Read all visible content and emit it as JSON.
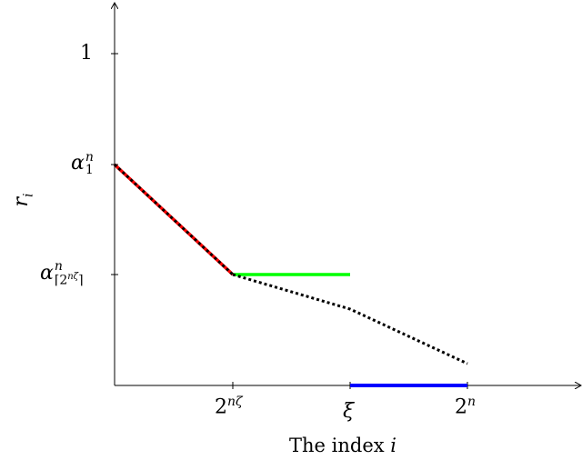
{
  "y_axis": {
    "label_base": "r",
    "label_sub": "i",
    "ticks": [
      {
        "text": "1"
      },
      {
        "base": "α",
        "sup": "n",
        "sub": "1"
      },
      {
        "base": "α",
        "sup": "n",
        "sub": "⌈2",
        "sub_sup": "nζ",
        "sub_end": "⌉"
      }
    ]
  },
  "x_axis": {
    "label_text": "The index ",
    "label_var": "i",
    "ticks": [
      {
        "base": "2",
        "sup": "nζ"
      },
      {
        "base": "ξ"
      },
      {
        "base": "2",
        "sup": "n"
      }
    ]
  },
  "colors": {
    "red_segment": "#ff0000",
    "green_segment": "#00ff00",
    "blue_segment": "#0000ff",
    "dotted_curve": "#000000"
  }
}
